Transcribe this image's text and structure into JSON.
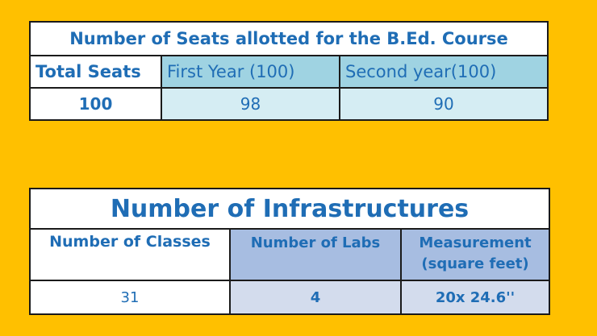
{
  "seats_table": {
    "title": "Number of Seats allotted for the B.Ed. Course",
    "headers": [
      "Total Seats",
      "First Year (100)",
      "Second year(100)"
    ],
    "values": [
      "100",
      "98",
      "90"
    ]
  },
  "infra_table": {
    "title": "Number of Infrastructures",
    "headers": [
      "Number of Classes",
      "Number of Labs",
      "Measurement (square feet)"
    ],
    "values": [
      "31",
      "4",
      "20x 24.6''"
    ]
  }
}
